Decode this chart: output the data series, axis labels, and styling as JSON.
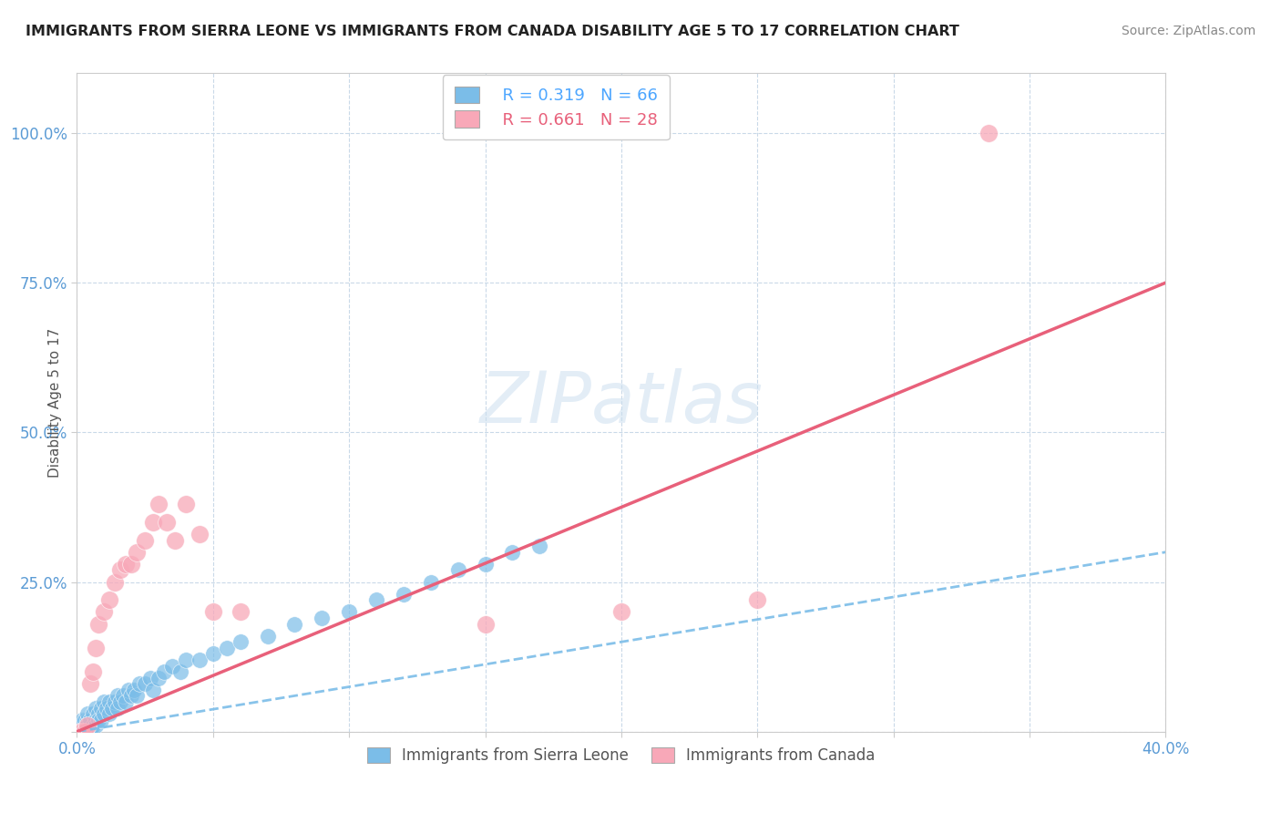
{
  "title": "IMMIGRANTS FROM SIERRA LEONE VS IMMIGRANTS FROM CANADA DISABILITY AGE 5 TO 17 CORRELATION CHART",
  "source": "Source: ZipAtlas.com",
  "ylabel": "Disability Age 5 to 17",
  "series1_name": "Immigrants from Sierra Leone",
  "series1_color": "#7bbde8",
  "series1_R": 0.319,
  "series1_N": 66,
  "series2_name": "Immigrants from Canada",
  "series2_color": "#f8a8b8",
  "series2_R": 0.661,
  "series2_N": 28,
  "axis_color": "#5b9bd5",
  "grid_color": "#c9d9e8",
  "legend_R1_color": "#4da6ff",
  "legend_R2_color": "#e8607a",
  "trend1_color": "#7bbde8",
  "trend2_color": "#e8607a",
  "sl_x": [
    0.0005,
    0.001,
    0.001,
    0.001,
    0.002,
    0.002,
    0.002,
    0.002,
    0.003,
    0.003,
    0.003,
    0.004,
    0.004,
    0.004,
    0.005,
    0.005,
    0.005,
    0.006,
    0.006,
    0.007,
    0.007,
    0.007,
    0.008,
    0.008,
    0.009,
    0.009,
    0.01,
    0.01,
    0.011,
    0.012,
    0.012,
    0.013,
    0.014,
    0.015,
    0.015,
    0.016,
    0.017,
    0.018,
    0.019,
    0.02,
    0.021,
    0.022,
    0.023,
    0.025,
    0.027,
    0.028,
    0.03,
    0.032,
    0.035,
    0.038,
    0.04,
    0.045,
    0.05,
    0.055,
    0.06,
    0.07,
    0.08,
    0.09,
    0.1,
    0.11,
    0.12,
    0.13,
    0.14,
    0.15,
    0.16,
    0.17
  ],
  "sl_y": [
    0.0,
    0.0,
    0.01,
    0.0,
    0.0,
    0.01,
    0.02,
    0.0,
    0.01,
    0.02,
    0.0,
    0.02,
    0.01,
    0.03,
    0.01,
    0.02,
    0.0,
    0.03,
    0.01,
    0.02,
    0.04,
    0.01,
    0.03,
    0.02,
    0.04,
    0.02,
    0.05,
    0.03,
    0.04,
    0.05,
    0.03,
    0.04,
    0.05,
    0.06,
    0.04,
    0.05,
    0.06,
    0.05,
    0.07,
    0.06,
    0.07,
    0.06,
    0.08,
    0.08,
    0.09,
    0.07,
    0.09,
    0.1,
    0.11,
    0.1,
    0.12,
    0.12,
    0.13,
    0.14,
    0.15,
    0.16,
    0.18,
    0.19,
    0.2,
    0.22,
    0.23,
    0.25,
    0.27,
    0.28,
    0.3,
    0.31
  ],
  "ca_x": [
    0.001,
    0.002,
    0.003,
    0.004,
    0.005,
    0.006,
    0.007,
    0.008,
    0.01,
    0.012,
    0.014,
    0.016,
    0.018,
    0.02,
    0.022,
    0.025,
    0.028,
    0.03,
    0.033,
    0.036,
    0.04,
    0.045,
    0.05,
    0.06,
    0.15,
    0.2,
    0.25,
    0.335
  ],
  "ca_y": [
    0.0,
    0.0,
    0.0,
    0.01,
    0.08,
    0.1,
    0.14,
    0.18,
    0.2,
    0.22,
    0.25,
    0.27,
    0.28,
    0.28,
    0.3,
    0.32,
    0.35,
    0.38,
    0.35,
    0.32,
    0.38,
    0.33,
    0.2,
    0.2,
    0.18,
    0.2,
    0.22,
    1.0
  ],
  "sl_trend": [
    0.0,
    0.4,
    0.0,
    0.3
  ],
  "ca_trend": [
    0.0,
    0.4,
    0.0,
    0.75
  ],
  "xlim": [
    0.0,
    0.4
  ],
  "ylim": [
    0.0,
    1.1
  ],
  "yticks": [
    0.0,
    0.25,
    0.5,
    0.75,
    1.0
  ],
  "ytick_labels": [
    "",
    "25.0%",
    "50.0%",
    "75.0%",
    "100.0%"
  ],
  "xtick_vals": [
    0.0,
    0.05,
    0.1,
    0.15,
    0.2,
    0.25,
    0.3,
    0.35,
    0.4
  ]
}
